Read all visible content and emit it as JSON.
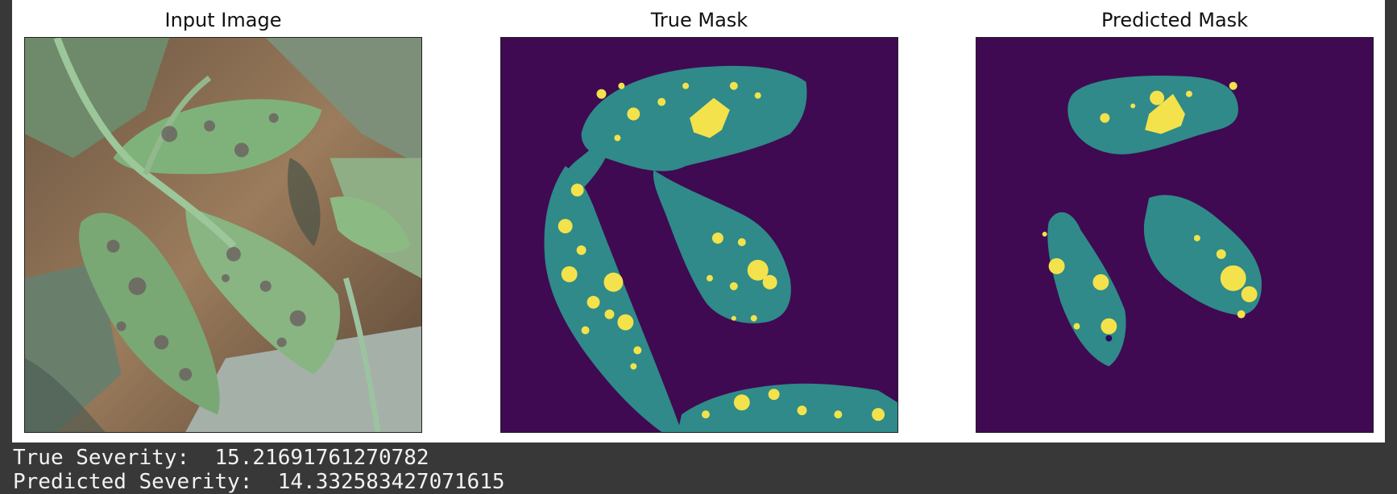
{
  "figure": {
    "subplots": [
      {
        "title": "Input Image",
        "content": "photo of diseased tomato leaves"
      },
      {
        "title": "True Mask",
        "content": "segmentation mask"
      },
      {
        "title": "Predicted Mask",
        "content": "segmentation mask"
      }
    ],
    "colors": {
      "background": "#3f0a52",
      "leaf": "#2f8a89",
      "lesion": "#f3e24b"
    }
  },
  "output": {
    "true_severity_label": "True Severity:",
    "true_severity_value": "15.21691761270782",
    "predicted_severity_label": "Predicted Severity:",
    "predicted_severity_value": "14.332583427071615"
  }
}
